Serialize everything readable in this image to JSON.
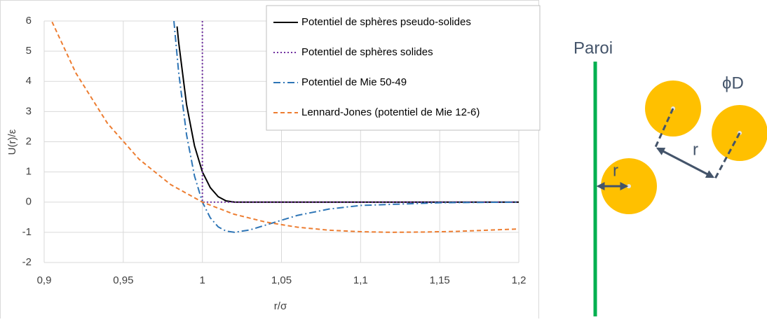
{
  "chart_data": {
    "type": "line",
    "xlabel": "r/σ",
    "ylabel": "U(r)/ε",
    "xlim": [
      0.9,
      1.2
    ],
    "ylim": [
      -2,
      6
    ],
    "xticks": [
      {
        "value": 0.9,
        "label": "0,9"
      },
      {
        "value": 0.95,
        "label": "0,95"
      },
      1,
      {
        "value": 1.05,
        "label": "1,05"
      },
      {
        "value": 1.1,
        "label": "1,1"
      },
      {
        "value": 1.15,
        "label": "1,15"
      },
      {
        "value": 1.2,
        "label": "1,2"
      }
    ],
    "yticks": [
      -2,
      -1,
      0,
      1,
      2,
      3,
      4,
      5,
      6
    ],
    "grid": true,
    "legend": "upper right",
    "series": [
      {
        "name": "Potentiel de sphères pseudo-solides",
        "color": "#000000",
        "dash": "solid",
        "x": [
          0.984,
          0.985,
          0.99,
          0.995,
          1.0,
          1.005,
          1.01,
          1.015,
          1.0204,
          1.2
        ],
        "values": [
          5.82,
          5.3,
          3.23,
          1.87,
          1.0,
          0.48,
          0.18,
          0.04,
          0,
          0
        ]
      },
      {
        "name": "Potentiel de sphères solides",
        "color": "#7030a0",
        "dash": "dotted",
        "x": [
          1.0,
          1.0,
          1.2
        ],
        "values": [
          6,
          0,
          0
        ]
      },
      {
        "name": "Potentiel de Mie 50-49",
        "color": "#2e75b6",
        "dash": "dashdot",
        "x": [
          0.982,
          0.985,
          0.99,
          0.995,
          1.0,
          1.005,
          1.01,
          1.015,
          1.0204,
          1.03,
          1.04,
          1.06,
          1.08,
          1.1,
          1.15,
          1.2
        ],
        "values": [
          6.0,
          4.3,
          2.23,
          0.87,
          0,
          -0.52,
          -0.82,
          -0.96,
          -1.0,
          -0.92,
          -0.76,
          -0.44,
          -0.23,
          -0.11,
          -0.02,
          0
        ]
      },
      {
        "name": "Lennard-Jones (potentiel de Mie 12-6)",
        "color": "#ed7d31",
        "dash": "dashed",
        "x": [
          0.905,
          0.92,
          0.94,
          0.96,
          0.98,
          1.0,
          1.02,
          1.04,
          1.06,
          1.08,
          1.1,
          1.12,
          1.14,
          1.16,
          1.18,
          1.2
        ],
        "values": [
          5.97,
          4.28,
          2.61,
          1.42,
          0.58,
          0,
          -0.4,
          -0.66,
          -0.83,
          -0.93,
          -0.98,
          -1.0,
          -0.99,
          -0.97,
          -0.93,
          -0.89
        ]
      }
    ]
  },
  "diagram": {
    "wall_label": "Paroi",
    "diameter_label": "ϕD",
    "distance_labels": [
      "r",
      "r"
    ]
  }
}
